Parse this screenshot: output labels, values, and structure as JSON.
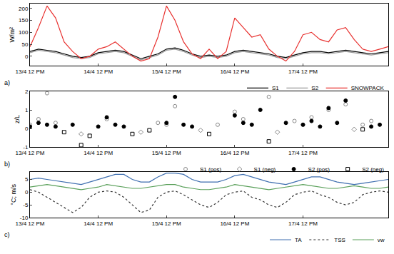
{
  "chart_data": [
    {
      "type": "line",
      "title": "a)",
      "y_label": "W/m²",
      "categories": [
        "13/4 12 PM",
        null,
        null,
        null,
        null,
        null,
        null,
        null,
        "14/4 12 PM",
        null,
        null,
        null,
        null,
        null,
        null,
        null,
        "15/4 12 PM",
        null,
        null,
        null,
        null,
        null,
        null,
        null,
        "16/4 12 PM",
        null,
        null,
        null,
        null,
        null,
        null,
        null,
        "17/4 12 PM",
        null,
        null,
        null,
        null,
        null,
        null,
        null,
        null,
        null,
        null
      ],
      "ylim": [
        -40,
        220
      ],
      "yticks": [
        0,
        50,
        100,
        150,
        200
      ],
      "grid": false,
      "legend": "bottom right",
      "series": [
        {
          "name": "S1",
          "color": "#000000",
          "line_style": "solid",
          "values": [
            20,
            30,
            25,
            20,
            10,
            0,
            -5,
            0,
            15,
            20,
            25,
            20,
            5,
            -10,
            0,
            10,
            30,
            35,
            25,
            10,
            0,
            5,
            0,
            5,
            20,
            25,
            20,
            15,
            10,
            0,
            -5,
            5,
            15,
            20,
            20,
            15,
            20,
            25,
            20,
            15,
            10,
            15,
            20
          ]
        },
        {
          "name": "S2",
          "color": "#999999",
          "line_style": "solid",
          "values": [
            15,
            25,
            20,
            15,
            5,
            -5,
            -10,
            -5,
            10,
            15,
            20,
            15,
            0,
            -15,
            -5,
            5,
            25,
            30,
            20,
            5,
            -5,
            0,
            -5,
            0,
            15,
            20,
            15,
            10,
            5,
            -5,
            -10,
            0,
            10,
            15,
            15,
            10,
            15,
            20,
            15,
            10,
            5,
            10,
            15
          ]
        },
        {
          "name": "SNOWPACK",
          "color": "#e8312f",
          "line_style": "solid",
          "values": [
            40,
            120,
            210,
            160,
            60,
            20,
            -10,
            0,
            30,
            40,
            60,
            30,
            0,
            -20,
            -10,
            80,
            210,
            150,
            60,
            10,
            -10,
            30,
            -10,
            20,
            160,
            120,
            80,
            90,
            30,
            0,
            -20,
            20,
            90,
            100,
            70,
            60,
            110,
            120,
            70,
            30,
            20,
            30,
            40
          ]
        }
      ]
    },
    {
      "type": "scatter",
      "title": "b)",
      "y_label": "z/L",
      "categories": [
        "13/4 12 PM",
        null,
        null,
        null,
        null,
        null,
        null,
        null,
        "14/4 12 PM",
        null,
        null,
        null,
        null,
        null,
        null,
        null,
        "15/4 12 PM",
        null,
        null,
        null,
        null,
        null,
        null,
        null,
        "16/4 12 PM",
        null,
        null,
        null,
        null,
        null,
        null,
        null,
        "17/4 12 PM",
        null,
        null,
        null,
        null,
        null,
        null,
        null,
        null,
        null,
        null
      ],
      "ylim": [
        -1,
        2
      ],
      "yticks": [
        -1,
        0,
        1,
        2
      ],
      "grid": false,
      "legend": "bottom right",
      "series": [
        {
          "name": "S1 (pos)",
          "color": "#888888",
          "marker": "circle-open",
          "values": [
            0.2,
            0.5,
            1.9,
            0.3,
            null,
            null,
            null,
            null,
            null,
            0.5,
            null,
            null,
            null,
            null,
            null,
            0.3,
            0.2,
            1.2,
            null,
            null,
            null,
            null,
            0.2,
            null,
            0.9,
            0.5,
            null,
            null,
            1.7,
            null,
            null,
            0.4,
            0.2,
            0.6,
            null,
            1.0,
            null,
            1.3,
            null,
            0.2,
            0.4,
            null,
            null
          ]
        },
        {
          "name": "S1 (neg)",
          "color": "#888888",
          "marker": "diamond-open",
          "values": [
            null,
            null,
            null,
            null,
            null,
            null,
            -0.3,
            null,
            null,
            null,
            null,
            null,
            null,
            -0.2,
            null,
            null,
            null,
            null,
            null,
            null,
            -0.1,
            null,
            null,
            null,
            null,
            null,
            null,
            null,
            null,
            -0.2,
            null,
            null,
            null,
            null,
            null,
            null,
            null,
            null,
            -0.05,
            null,
            null,
            null,
            null
          ]
        },
        {
          "name": "S2 (pos)",
          "color": "#000000",
          "marker": "circle",
          "values": [
            0.1,
            0.3,
            0.2,
            0.1,
            null,
            0.2,
            null,
            null,
            0.1,
            0.6,
            0.2,
            0.1,
            null,
            null,
            null,
            null,
            0.3,
            1.7,
            0.2,
            0.1,
            null,
            null,
            null,
            null,
            0.7,
            0.3,
            0.2,
            1.0,
            null,
            null,
            0.3,
            null,
            0.2,
            0.4,
            0.1,
            1.1,
            0.3,
            1.5,
            null,
            null,
            0.1,
            0.2,
            null
          ]
        },
        {
          "name": "S2 (neg)",
          "color": "#000000",
          "marker": "square-open",
          "values": [
            null,
            null,
            null,
            null,
            -0.2,
            null,
            -0.9,
            -0.4,
            null,
            null,
            null,
            null,
            -0.3,
            null,
            -0.1,
            null,
            null,
            null,
            null,
            null,
            null,
            -0.3,
            null,
            null,
            null,
            null,
            null,
            null,
            -0.7,
            null,
            null,
            null,
            null,
            null,
            null,
            null,
            null,
            null,
            null,
            -0.05,
            null,
            null,
            null
          ]
        }
      ]
    },
    {
      "type": "line",
      "title": "c)",
      "y_label": "°C; m/s",
      "categories": [
        "13/4 12 PM",
        null,
        null,
        null,
        null,
        null,
        null,
        null,
        "14/4 12 PM",
        null,
        null,
        null,
        null,
        null,
        null,
        null,
        "15/4 12 PM",
        null,
        null,
        null,
        null,
        null,
        null,
        null,
        "16/4 12 PM",
        null,
        null,
        null,
        null,
        null,
        null,
        null,
        "17/4 12 PM",
        null,
        null,
        null,
        null,
        null,
        null,
        null,
        null,
        null,
        null
      ],
      "ylim": [
        -10,
        8
      ],
      "yticks": [
        -10,
        -5,
        0,
        5
      ],
      "grid": false,
      "legend": "bottom right",
      "series": [
        {
          "name": "TA",
          "color": "#3f6fb0",
          "line_style": "solid",
          "values": [
            5,
            5.5,
            5,
            4.5,
            4,
            3.5,
            3,
            4,
            5,
            6,
            7,
            7,
            5,
            4,
            4,
            6,
            7.5,
            7.5,
            7,
            5,
            4,
            4,
            4,
            5,
            6.5,
            7,
            6,
            5,
            4,
            3.5,
            3,
            4,
            5,
            6,
            6,
            5,
            4,
            3.5,
            3,
            3.5,
            4,
            4.5,
            5
          ]
        },
        {
          "name": "TSS",
          "color": "#333333",
          "line_style": "dot",
          "values": [
            1,
            0,
            -2,
            -4,
            -6,
            -8,
            -6,
            -2,
            0,
            0.5,
            0,
            -2,
            -5,
            -8,
            -7,
            -2,
            0,
            0.5,
            -1,
            -3,
            -5,
            -6,
            -4,
            -1,
            0,
            0.5,
            -2,
            -3,
            -5,
            -6,
            -4,
            -1,
            0,
            0.5,
            -1,
            -2,
            -4,
            -5,
            -4,
            -1,
            0,
            0.5,
            0
          ]
        },
        {
          "name": "vw",
          "color": "#5aa05a",
          "line_style": "solid",
          "values": [
            2,
            2.5,
            3,
            2.5,
            2,
            1.5,
            1,
            1.5,
            2,
            3,
            2.5,
            2,
            1.5,
            1.5,
            2,
            2.5,
            3,
            3,
            2,
            1.5,
            1,
            1,
            1.5,
            2,
            3,
            2.5,
            2,
            1.5,
            1,
            1.5,
            2,
            2.5,
            3,
            2.5,
            2,
            1.5,
            1.5,
            2,
            2.5,
            2,
            1.5,
            1.5,
            2
          ]
        }
      ]
    }
  ]
}
